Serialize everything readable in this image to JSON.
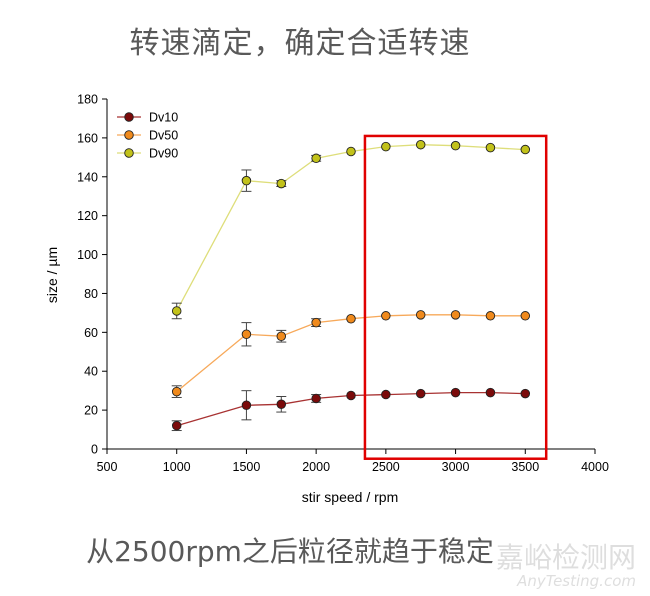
{
  "slide": {
    "title": "转速滴定，确定合适转速",
    "caption": "从2500rpm之后粒径就趋于稳定",
    "watermark_cn": "嘉峪检测网",
    "watermark_en": "AnyTesting.com"
  },
  "chart_data": {
    "type": "line",
    "title": "",
    "xlabel": "stir speed / rpm",
    "ylabel": "size / µm",
    "xlim": [
      500,
      4000
    ],
    "ylim": [
      0,
      180
    ],
    "xticks": [
      500,
      1000,
      1500,
      2000,
      2500,
      3000,
      3500,
      4000
    ],
    "yticks": [
      0,
      20,
      40,
      60,
      80,
      100,
      120,
      140,
      160,
      180
    ],
    "grid": false,
    "legend": "top-left",
    "x": [
      1000,
      1500,
      1750,
      2000,
      2250,
      2500,
      2750,
      3000,
      3250,
      3500
    ],
    "series": [
      {
        "name": "Dv10",
        "marker_color": "#7b0a0a",
        "line_color": "#a83232",
        "values": [
          12,
          22.5,
          23,
          26,
          27.5,
          28,
          28.5,
          29,
          29,
          28.5
        ],
        "errors": [
          2.5,
          7.5,
          4,
          2,
          1,
          0.8,
          0.8,
          0.8,
          0.8,
          0.8
        ]
      },
      {
        "name": "Dv50",
        "marker_color": "#f08a1c",
        "line_color": "#f7a95a",
        "values": [
          29.5,
          59,
          58,
          65,
          67,
          68.5,
          69,
          69,
          68.5,
          68.5
        ],
        "errors": [
          3,
          6,
          3,
          2,
          1,
          0.8,
          0.8,
          0.8,
          0.8,
          0.8
        ]
      },
      {
        "name": "Dv90",
        "marker_color": "#c2c21a",
        "line_color": "#dede7a",
        "values": [
          71,
          138,
          136.5,
          149.5,
          153,
          155.5,
          156.5,
          156,
          155,
          154
        ],
        "errors": [
          4,
          5.5,
          1.5,
          1.5,
          1,
          0.8,
          0.8,
          0.8,
          0.8,
          0.8
        ]
      }
    ],
    "highlight_box": {
      "color": "#e00000",
      "x_from": 2350,
      "x_to": 3650,
      "y_from": -5,
      "y_to": 161
    }
  }
}
